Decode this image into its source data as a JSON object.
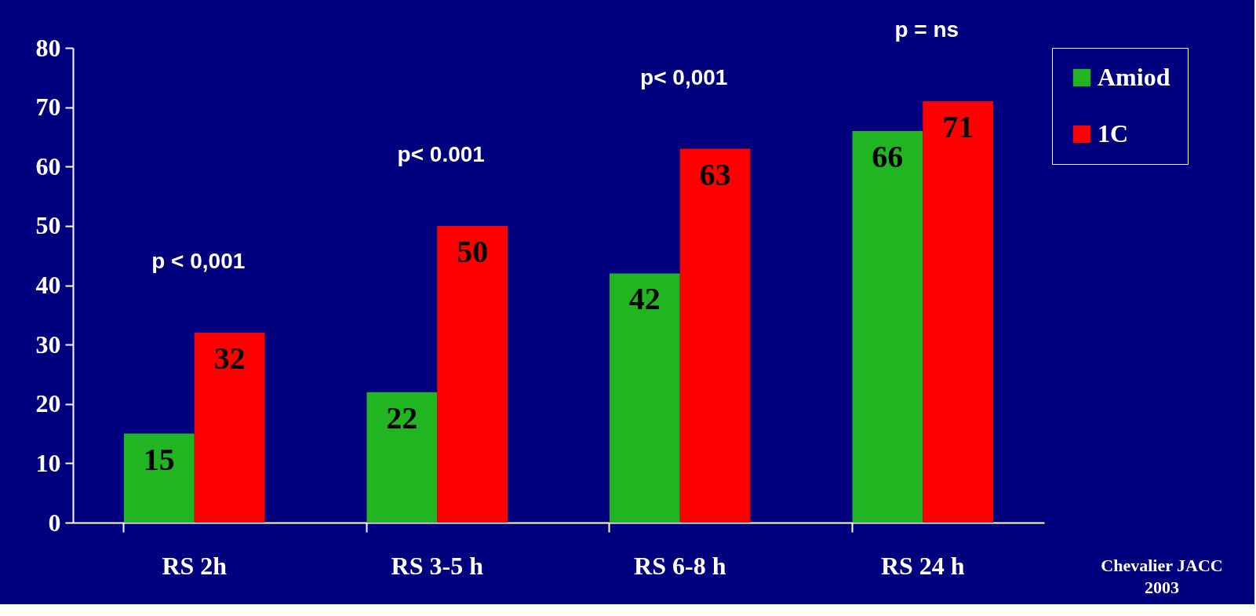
{
  "chart_data": {
    "type": "bar",
    "categories": [
      "RS 2h",
      "RS 3-5 h",
      "RS 6-8 h",
      "RS 24 h"
    ],
    "series": [
      {
        "name": "Amiod",
        "color": "#22b522",
        "values": [
          15,
          22,
          42,
          66
        ]
      },
      {
        "name": "1C",
        "color": "#ff0000",
        "values": [
          32,
          50,
          63,
          71
        ]
      }
    ],
    "ylim": [
      0,
      80
    ],
    "yticks": [
      0,
      10,
      20,
      30,
      40,
      50,
      60,
      70,
      80
    ],
    "grid": false,
    "legend": "right",
    "data_labels": true,
    "annotations": [
      "p < 0,001",
      "p< 0.001",
      "p< 0,001",
      "p = ns",
      "Chevalier JACC 2003"
    ]
  }
}
